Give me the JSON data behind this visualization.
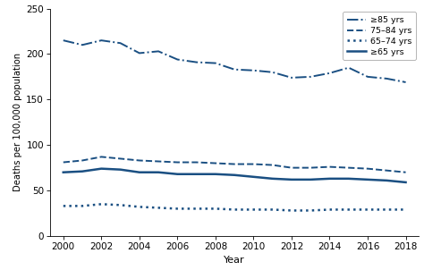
{
  "years": [
    2000,
    2001,
    2002,
    2003,
    2004,
    2005,
    2006,
    2007,
    2008,
    2009,
    2010,
    2011,
    2012,
    2013,
    2014,
    2015,
    2016,
    2017,
    2018
  ],
  "ge85": [
    215,
    210,
    215,
    212,
    201,
    203,
    194,
    191,
    190,
    183,
    182,
    180,
    174,
    175,
    179,
    185,
    175,
    173,
    169
  ],
  "y7584": [
    81,
    83,
    87,
    85,
    83,
    82,
    81,
    81,
    80,
    79,
    79,
    78,
    75,
    75,
    76,
    75,
    74,
    72,
    70
  ],
  "y6574": [
    33,
    33,
    35,
    34,
    32,
    31,
    30,
    30,
    30,
    29,
    29,
    29,
    28,
    28,
    29,
    29,
    29,
    29,
    29
  ],
  "ge65": [
    70,
    71,
    74,
    73,
    70,
    70,
    68,
    68,
    68,
    67,
    65,
    63,
    62,
    62,
    63,
    63,
    62,
    61,
    59
  ],
  "color": "#1a4f82",
  "ylim": [
    0,
    250
  ],
  "yticks": [
    0,
    50,
    100,
    150,
    200,
    250
  ],
  "xticks": [
    2000,
    2002,
    2004,
    2006,
    2008,
    2010,
    2012,
    2014,
    2016,
    2018
  ],
  "xlabel": "Year",
  "ylabel": "Deaths per 100,000 population",
  "legend_labels": [
    "≥85 yrs",
    "75–84 yrs",
    "65–74 yrs",
    "≥65 yrs"
  ],
  "figsize": [
    4.74,
    3.02
  ],
  "dpi": 100
}
